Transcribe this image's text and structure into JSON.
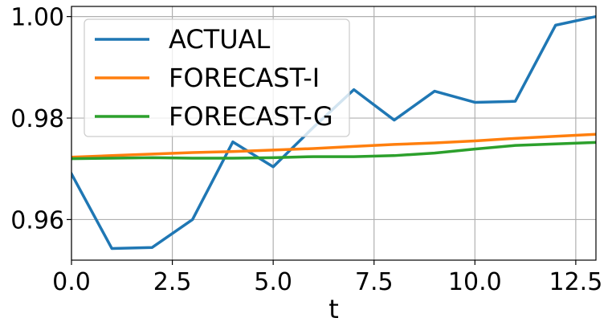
{
  "chart_data": {
    "type": "line",
    "title": "",
    "xlabel": "t",
    "ylabel": "",
    "xlim": [
      0,
      13
    ],
    "ylim": [
      0.952,
      1.002
    ],
    "xticks": [
      0.0,
      2.5,
      5.0,
      7.5,
      10.0,
      12.5
    ],
    "xtick_labels": [
      "0.0",
      "2.5",
      "5.0",
      "7.5",
      "10.0",
      "12.5"
    ],
    "yticks": [
      0.96,
      0.98,
      1.0
    ],
    "ytick_labels": [
      "0.96",
      "0.98",
      "1.00"
    ],
    "grid": true,
    "legend_position": "upper-left",
    "x": [
      0,
      1,
      2,
      3,
      4,
      5,
      6,
      7,
      8,
      9,
      10,
      11,
      12,
      13
    ],
    "series": [
      {
        "name": "ACTUAL",
        "color": "#1f77b4",
        "values": [
          0.969,
          0.9543,
          0.9545,
          0.96,
          0.9753,
          0.9704,
          0.9782,
          0.9856,
          0.9796,
          0.9853,
          0.9831,
          0.9833,
          0.9983,
          1.0
        ]
      },
      {
        "name": "FORECAST-I",
        "color": "#ff7f0e",
        "values": [
          0.9723,
          0.9726,
          0.9729,
          0.9732,
          0.9734,
          0.9737,
          0.974,
          0.9744,
          0.9748,
          0.9751,
          0.9755,
          0.976,
          0.9764,
          0.9768
        ]
      },
      {
        "name": "FORECAST-G",
        "color": "#2ca02c",
        "values": [
          0.972,
          0.9721,
          0.9722,
          0.9721,
          0.9721,
          0.9722,
          0.9724,
          0.9724,
          0.9726,
          0.9731,
          0.9739,
          0.9746,
          0.9749,
          0.9752
        ]
      }
    ]
  }
}
